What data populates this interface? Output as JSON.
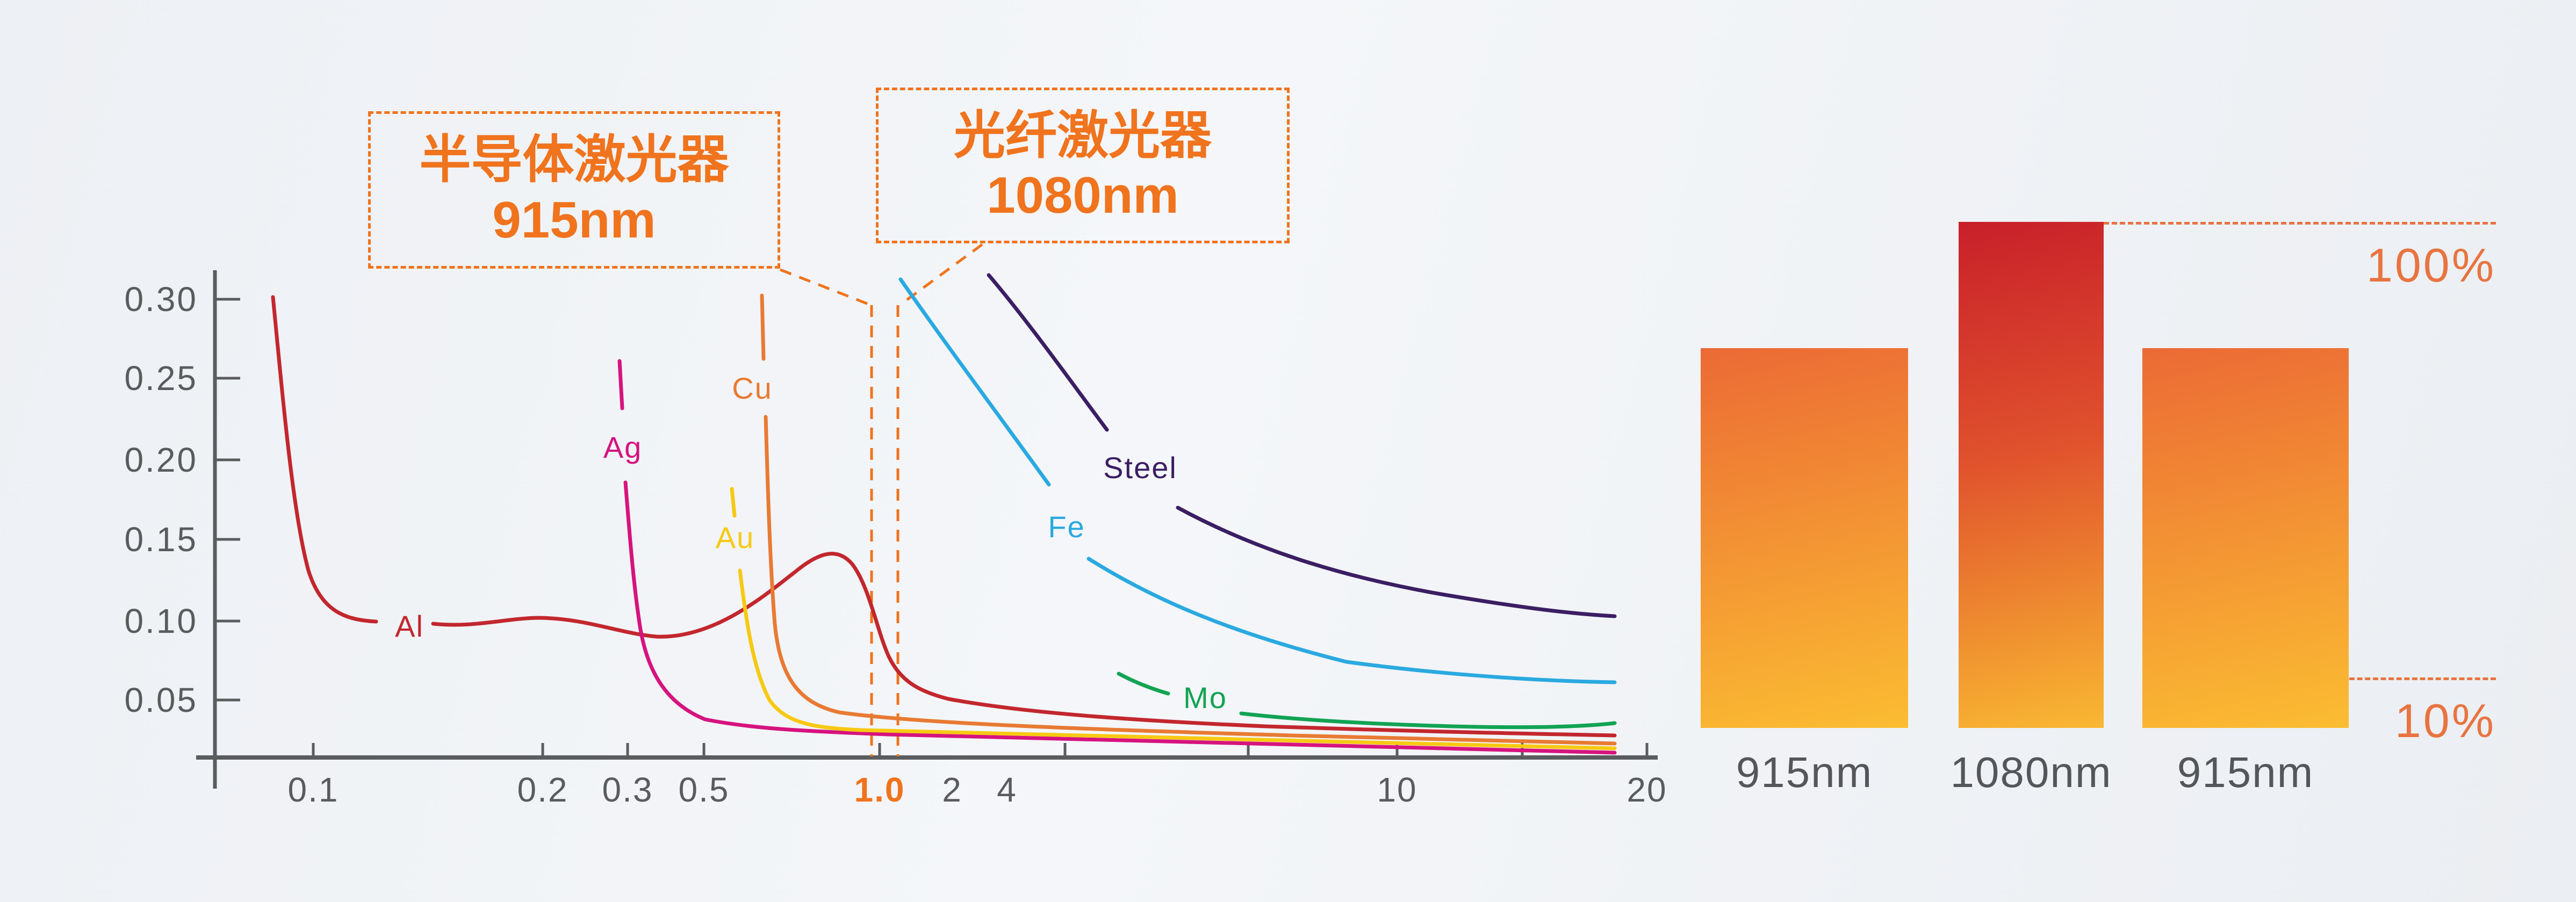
{
  "background": {
    "base": "#edf0f4",
    "sheen": "#f4f6f9"
  },
  "accent": {
    "orange": "#F0731D",
    "soft_orange": "#E87441"
  },
  "callouts": {
    "left": {
      "title": "半导体激光器",
      "wavelength": "915nm"
    },
    "right": {
      "title": "光纤激光器",
      "wavelength": "1080nm"
    }
  },
  "line_chart": {
    "y_labels": [
      "0.30",
      "0.25",
      "0.20",
      "0.15",
      "0.10",
      "0.05"
    ],
    "x_labels": [
      {
        "t": "0.1"
      },
      {
        "t": "0.2"
      },
      {
        "t": "0.3"
      },
      {
        "t": "0.5"
      },
      {
        "t": "1.0",
        "highlight": true
      },
      {
        "t": "2"
      },
      {
        "t": "4"
      },
      {
        "t": "10"
      },
      {
        "t": "20"
      }
    ],
    "series_labels": {
      "al": "Al",
      "ag": "Ag",
      "au": "Au",
      "cu": "Cu",
      "fe": "Fe",
      "steel": "Steel",
      "mo": "Mo"
    },
    "colors": {
      "al": "#C2272D",
      "ag": "#D6137E",
      "au": "#F7C913",
      "cu": "#E87A33",
      "fe": "#2AA9E0",
      "steel": "#3B1E63",
      "mo": "#12A353",
      "axis": "#5b5c5e",
      "tick_text": "#5a5b5d",
      "marker_dash": "#F0731D"
    }
  },
  "bar_chart": {
    "labels": [
      "915nm",
      "1080nm",
      "915nm"
    ],
    "values_pct": [
      75,
      100,
      75
    ],
    "guides": [
      {
        "label": "100%",
        "pct": 100
      },
      {
        "label": "10%",
        "pct": 10
      }
    ],
    "gradients": {
      "side": [
        "#EB6A35",
        "#FBBD32"
      ],
      "center": [
        "#C8202A",
        "#E0512D",
        "#F9B832"
      ]
    }
  },
  "chart_data": [
    {
      "type": "line",
      "title": "",
      "x_scale": "log",
      "x_axis_ticks": [
        "0.1",
        "0.2",
        "0.3",
        "0.5",
        "1.0",
        "2",
        "4",
        "10",
        "20"
      ],
      "y_axis_ticks": [
        0.3,
        0.25,
        0.2,
        0.15,
        0.1,
        0.05
      ],
      "ylim": [
        0,
        0.32
      ],
      "grid": false,
      "legend": "inline labels on curves",
      "vertical_markers": [
        {
          "label": "915nm",
          "x": 0.915,
          "style": "dashed orange"
        },
        {
          "label": "1080nm",
          "x": 1.08,
          "style": "dashed orange"
        }
      ],
      "series": [
        {
          "name": "Al",
          "color": "#C2272D",
          "points": [
            [
              0.08,
              0.3
            ],
            [
              0.1,
              0.12
            ],
            [
              0.15,
              0.1
            ],
            [
              0.2,
              0.1
            ],
            [
              0.3,
              0.095
            ],
            [
              0.5,
              0.105
            ],
            [
              0.8,
              0.145
            ],
            [
              1.0,
              0.08
            ],
            [
              1.08,
              0.06
            ],
            [
              2,
              0.042
            ],
            [
              4,
              0.036
            ],
            [
              10,
              0.031
            ],
            [
              20,
              0.028
            ]
          ]
        },
        {
          "name": "Ag",
          "color": "#D6137E",
          "points": [
            [
              0.29,
              0.27
            ],
            [
              0.3,
              0.19
            ],
            [
              0.32,
              0.08
            ],
            [
              0.4,
              0.042
            ],
            [
              0.5,
              0.035
            ],
            [
              1.0,
              0.028
            ],
            [
              2,
              0.024
            ],
            [
              10,
              0.019
            ],
            [
              20,
              0.017
            ]
          ]
        },
        {
          "name": "Au",
          "color": "#F7C913",
          "points": [
            [
              0.55,
              0.185
            ],
            [
              0.6,
              0.1
            ],
            [
              0.7,
              0.05
            ],
            [
              1.0,
              0.035
            ],
            [
              2,
              0.03
            ],
            [
              10,
              0.024
            ],
            [
              20,
              0.02
            ]
          ]
        },
        {
          "name": "Cu",
          "color": "#E87A33",
          "points": [
            [
              0.62,
              0.3
            ],
            [
              0.7,
              0.17
            ],
            [
              0.8,
              0.07
            ],
            [
              1.0,
              0.046
            ],
            [
              2,
              0.036
            ],
            [
              10,
              0.028
            ],
            [
              20,
              0.023
            ]
          ]
        },
        {
          "name": "Fe",
          "color": "#2AA9E0",
          "points": [
            [
              1.08,
              0.31
            ],
            [
              1.5,
              0.23
            ],
            [
              2,
              0.18
            ],
            [
              4,
              0.12
            ],
            [
              10,
              0.08
            ],
            [
              20,
              0.064
            ]
          ]
        },
        {
          "name": "Steel",
          "color": "#3B1E63",
          "points": [
            [
              1.4,
              0.315
            ],
            [
              2,
              0.25
            ],
            [
              4,
              0.17
            ],
            [
              10,
              0.125
            ],
            [
              20,
              0.103
            ]
          ]
        },
        {
          "name": "Mo",
          "color": "#12A353",
          "points": [
            [
              5,
              0.066
            ],
            [
              7,
              0.05
            ],
            [
              10,
              0.04
            ],
            [
              15,
              0.034
            ],
            [
              20,
              0.036
            ]
          ]
        }
      ]
    },
    {
      "type": "bar",
      "categories": [
        "915nm",
        "1080nm",
        "915nm"
      ],
      "values": [
        75,
        100,
        75
      ],
      "unit": "%",
      "ylim": [
        0,
        100
      ],
      "annotations": [
        {
          "text": "100%",
          "at": "dashed line level with top of 1080nm bar"
        },
        {
          "text": "10%",
          "at": "dashed reference line near bar bottoms"
        }
      ]
    }
  ]
}
